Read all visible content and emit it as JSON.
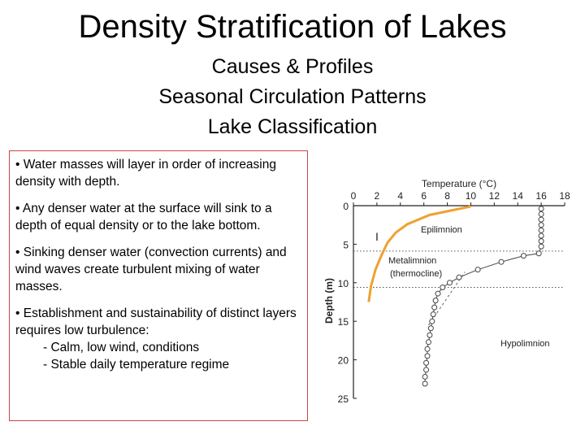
{
  "title": "Density Stratification of Lakes",
  "subtitles": [
    "Causes & Profiles",
    "Seasonal Circulation Patterns",
    "Lake Classification"
  ],
  "bullets": {
    "b1": "• Water masses will layer in order of increasing density with depth.",
    "b2": "• Any denser water at the surface will sink to a depth of equal density or to the lake bottom.",
    "b3": "• Sinking denser water (convection currents) and wind waves create turbulent mixing of water masses.",
    "b4": "• Establishment and sustainability of distinct layers requires low turbulence:",
    "b4_sub1": "- Calm, low wind, conditions",
    "b4_sub2": "- Stable daily temperature regime"
  },
  "chart_data": {
    "type": "scatter",
    "xlabel": "Temperature (°C)",
    "ylabel": "Depth (m)",
    "xlim": [
      0,
      18
    ],
    "ylim": [
      25,
      0
    ],
    "x_ticks": [
      "0",
      "2",
      "4",
      "6",
      "8",
      "10",
      "12",
      "14",
      "16",
      "18"
    ],
    "y_ticks": [
      "0",
      "5",
      "10",
      "15",
      "20",
      "25"
    ],
    "layers": {
      "epilimnion": "Epilimnion",
      "metalimnion": "Metalimnion",
      "thermocline": "(thermocline)",
      "hypolimnion": "Hypolimnion"
    },
    "annotation": "I",
    "series": [
      {
        "values": [
          {
            "x": 16,
            "y": 0.4
          },
          {
            "x": 16,
            "y": 1.1
          },
          {
            "x": 16,
            "y": 1.8
          },
          {
            "x": 16,
            "y": 2.5
          },
          {
            "x": 16,
            "y": 3.2
          },
          {
            "x": 16,
            "y": 3.9
          },
          {
            "x": 16,
            "y": 4.6
          },
          {
            "x": 16,
            "y": 5.3
          },
          {
            "x": 15.8,
            "y": 6.2
          },
          {
            "x": 14.5,
            "y": 6.5
          },
          {
            "x": 12.6,
            "y": 7.3
          },
          {
            "x": 10.6,
            "y": 8.3
          },
          {
            "x": 9.0,
            "y": 9.3
          },
          {
            "x": 8.2,
            "y": 10.0
          },
          {
            "x": 7.6,
            "y": 10.6
          },
          {
            "x": 7.2,
            "y": 11.4
          },
          {
            "x": 7.0,
            "y": 12.3
          },
          {
            "x": 6.9,
            "y": 13.2
          },
          {
            "x": 6.8,
            "y": 14.1
          },
          {
            "x": 6.7,
            "y": 15.0
          },
          {
            "x": 6.6,
            "y": 15.9
          },
          {
            "x": 6.5,
            "y": 16.8
          },
          {
            "x": 6.4,
            "y": 17.7
          },
          {
            "x": 6.3,
            "y": 18.6
          },
          {
            "x": 6.3,
            "y": 19.5
          },
          {
            "x": 6.2,
            "y": 20.4
          },
          {
            "x": 6.2,
            "y": 21.3
          },
          {
            "x": 6.1,
            "y": 22.2
          },
          {
            "x": 6.1,
            "y": 23.1
          }
        ]
      }
    ],
    "grid": false,
    "colors": {
      "hand_drawn_curve": "#f0a030",
      "points": "#444444",
      "box_border": "#cc4444"
    }
  }
}
